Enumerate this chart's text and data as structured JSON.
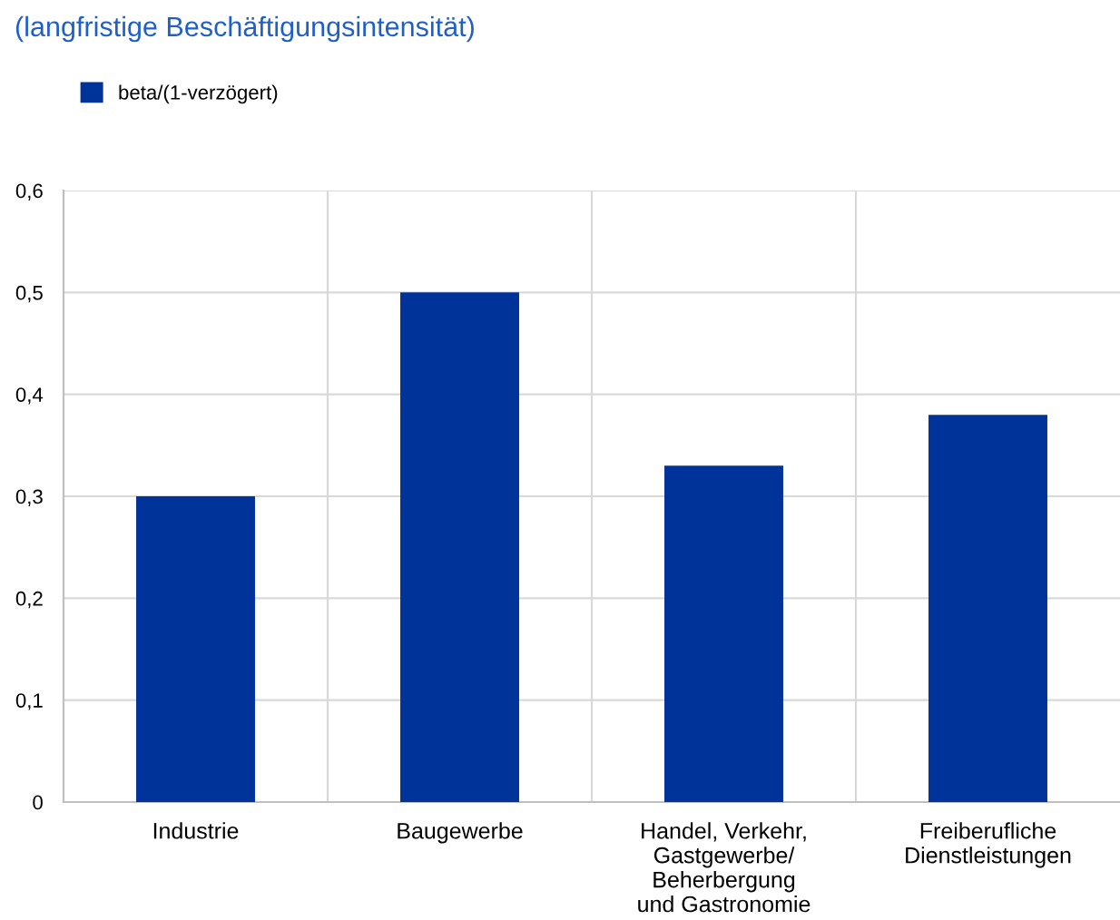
{
  "chart_data": {
    "type": "bar",
    "title": "(langfristige Beschäftigungsintensität)",
    "categories": [
      "Industrie",
      "Baugewerbe",
      "Handel, Verkehr,\nGastgewerbe/\nBeherbergung\nund Gastronomie",
      "Freiberufliche\nDienstleistungen"
    ],
    "series": [
      {
        "name": "beta/(1-verzögert)",
        "color": "#00339a",
        "values": [
          0.3,
          0.5,
          0.33,
          0.38
        ]
      }
    ],
    "ylim": [
      0,
      0.6
    ],
    "yticks": [
      {
        "value": 0,
        "label": "0"
      },
      {
        "value": 0.1,
        "label": "0,1"
      },
      {
        "value": 0.2,
        "label": "0,2"
      },
      {
        "value": 0.3,
        "label": "0,3"
      },
      {
        "value": 0.4,
        "label": "0,4"
      },
      {
        "value": 0.5,
        "label": "0,5"
      },
      {
        "value": 0.6,
        "label": "0,6"
      }
    ],
    "grid": true,
    "legend": "top left"
  }
}
